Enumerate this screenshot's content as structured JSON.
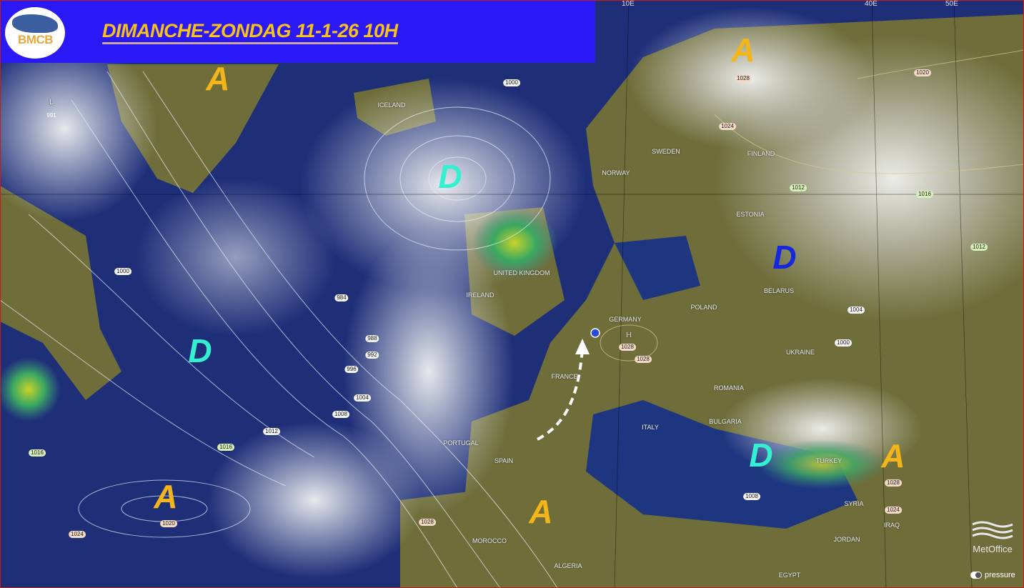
{
  "header": {
    "logo_text": "BMCB",
    "title": "DIMANCHE-ZONDAG  11-1-26  10H",
    "background_color": "#2a18f5",
    "title_color": "#f7c21a"
  },
  "grid_labels": [
    "10E",
    "40E",
    "50E"
  ],
  "pressure_systems": [
    {
      "label": "A",
      "kind": "high"
    },
    {
      "label": "A",
      "kind": "high"
    },
    {
      "label": "A",
      "kind": "high"
    },
    {
      "label": "A",
      "kind": "high"
    },
    {
      "label": "A",
      "kind": "high"
    },
    {
      "label": "D",
      "kind": "low"
    },
    {
      "label": "D",
      "kind": "low"
    },
    {
      "label": "D",
      "kind": "low"
    },
    {
      "label": "D",
      "kind": "low-blue"
    }
  ],
  "countries": [
    "ICELAND",
    "NORWAY",
    "SWEDEN",
    "FINLAND",
    "ESTONIA",
    "UNITED KINGDOM",
    "IRELAND",
    "GERMANY",
    "POLAND",
    "BELARUS",
    "UKRAINE",
    "FRANCE",
    "SPAIN",
    "PORTUGAL",
    "ITALY",
    "ROMANIA",
    "BULGARIA",
    "TURKEY",
    "MOROCCO",
    "ALGERIA",
    "EGYPT",
    "SYRIA",
    "IRAQ",
    "JORDAN"
  ],
  "isobars": [
    "L",
    "991",
    "1000",
    "1000",
    "984",
    "988",
    "992",
    "996",
    "1004",
    "1008",
    "1012",
    "1016",
    "1016",
    "1020",
    "1024",
    "1028",
    "1008",
    "1024",
    "1028",
    "1024",
    "1028",
    "1020",
    "1016",
    "1012",
    "1012",
    "1004",
    "1000",
    "H",
    "1028",
    "1028"
  ],
  "branding": {
    "metoffice": "MetOffice",
    "toggle_label": "pressure"
  },
  "colors": {
    "high": "#f3b51a",
    "low": "#33f0d0",
    "low_blue": "#1428e0"
  }
}
